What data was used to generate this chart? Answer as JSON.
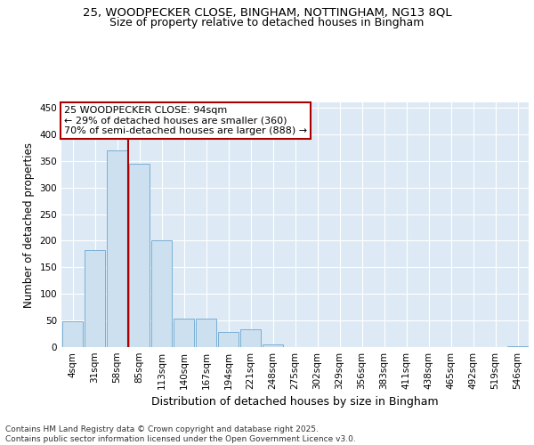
{
  "title_line1": "25, WOODPECKER CLOSE, BINGHAM, NOTTINGHAM, NG13 8QL",
  "title_line2": "Size of property relative to detached houses in Bingham",
  "xlabel": "Distribution of detached houses by size in Bingham",
  "ylabel": "Number of detached properties",
  "categories": [
    "4sqm",
    "31sqm",
    "58sqm",
    "85sqm",
    "113sqm",
    "140sqm",
    "167sqm",
    "194sqm",
    "221sqm",
    "248sqm",
    "275sqm",
    "302sqm",
    "329sqm",
    "356sqm",
    "383sqm",
    "411sqm",
    "438sqm",
    "465sqm",
    "492sqm",
    "519sqm",
    "546sqm"
  ],
  "values": [
    49,
    183,
    370,
    345,
    200,
    54,
    54,
    28,
    33,
    5,
    0,
    0,
    0,
    0,
    0,
    0,
    0,
    0,
    0,
    0,
    1
  ],
  "bar_color": "#cce0f0",
  "bar_edge_color": "#7aafd4",
  "vline_color": "#aa0000",
  "vline_x_idx": 3,
  "annotation_text": "25 WOODPECKER CLOSE: 94sqm\n← 29% of detached houses are smaller (360)\n70% of semi-detached houses are larger (888) →",
  "annotation_box_facecolor": "#ffffff",
  "annotation_box_edgecolor": "#aa0000",
  "ylim": [
    0,
    460
  ],
  "yticks": [
    0,
    50,
    100,
    150,
    200,
    250,
    300,
    350,
    400,
    450
  ],
  "plot_bg_color": "#ddeaf5",
  "grid_color": "#ffffff",
  "title_fontsize": 9.5,
  "subtitle_fontsize": 9,
  "ylabel_fontsize": 8.5,
  "xlabel_fontsize": 9,
  "tick_fontsize": 7.5,
  "annotation_fontsize": 8,
  "footer_fontsize": 6.5,
  "footer": "Contains HM Land Registry data © Crown copyright and database right 2025.\nContains public sector information licensed under the Open Government Licence v3.0."
}
